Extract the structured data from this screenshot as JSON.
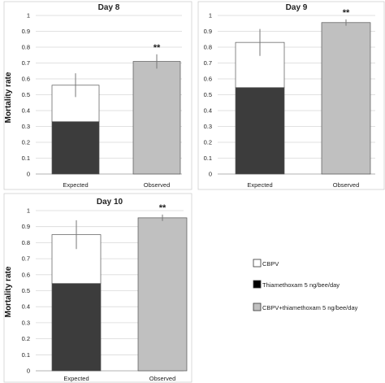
{
  "y_axis_label": "Mortality rate",
  "legend": [
    {
      "label": "CBPV",
      "color": "#ffffff"
    },
    {
      "label": "Thiamethoxam 5 ng/bee/day",
      "color": "#000000"
    },
    {
      "label": "CBPV+thiamethoxam 5 ng/bee/day",
      "color": "#c0c0c0"
    }
  ],
  "chart_data": [
    {
      "type": "bar",
      "title": "Day 8",
      "categories": [
        "Expected",
        "Observed"
      ],
      "ylim": [
        0,
        1
      ],
      "yticks": [
        "0",
        "0.1",
        "0.2",
        "0.3",
        "0.4",
        "0.5",
        "0.6",
        "0.7",
        "0.8",
        "0.9",
        "1"
      ],
      "series": [
        {
          "name": "Thiamethoxam 5 ng/bee/day",
          "values": [
            0.33,
            null
          ]
        },
        {
          "name": "CBPV",
          "values": [
            0.23,
            null
          ]
        },
        {
          "name": "CBPV+thiamethoxam 5 ng/bee/day",
          "values": [
            null,
            0.71
          ]
        }
      ],
      "error": [
        0.075,
        0.045
      ],
      "annotations": [
        "",
        "**"
      ],
      "grid": true
    },
    {
      "type": "bar",
      "title": "Day 9",
      "categories": [
        "Expected",
        "Observed"
      ],
      "ylim": [
        0,
        1
      ],
      "yticks": [
        "0",
        "0.1",
        "0.2",
        "0.3",
        "0.4",
        "0.5",
        "0.6",
        "0.7",
        "0.8",
        "0.9",
        "1"
      ],
      "series": [
        {
          "name": "Thiamethoxam 5 ng/bee/day",
          "values": [
            0.545,
            null
          ]
        },
        {
          "name": "CBPV",
          "values": [
            0.285,
            null
          ]
        },
        {
          "name": "CBPV+thiamethoxam 5 ng/bee/day",
          "values": [
            null,
            0.955
          ]
        }
      ],
      "error": [
        0.085,
        0.02
      ],
      "annotations": [
        "",
        "**"
      ],
      "grid": true
    },
    {
      "type": "bar",
      "title": "Day 10",
      "categories": [
        "Expected",
        "Observed"
      ],
      "ylim": [
        0,
        1
      ],
      "yticks": [
        "0",
        "0.1",
        "0.2",
        "0.3",
        "0.4",
        "0.5",
        "0.6",
        "0.7",
        "0.8",
        "0.9",
        "1"
      ],
      "series": [
        {
          "name": "Thiamethoxam 5 ng/bee/day",
          "values": [
            0.545,
            null
          ]
        },
        {
          "name": "CBPV",
          "values": [
            0.305,
            null
          ]
        },
        {
          "name": "CBPV+thiamethoxam 5 ng/bee/day",
          "values": [
            null,
            0.955
          ]
        }
      ],
      "error": [
        0.09,
        0.02
      ],
      "annotations": [
        "",
        "**"
      ],
      "grid": true
    }
  ]
}
